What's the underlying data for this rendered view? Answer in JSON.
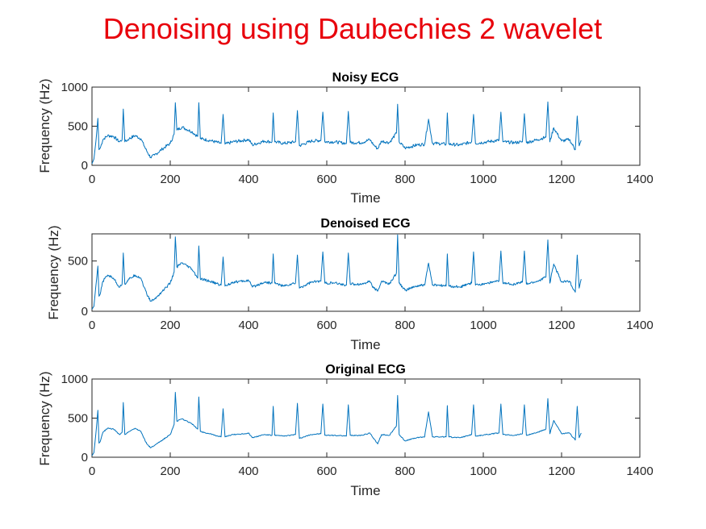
{
  "figure": {
    "title": "Denoising using Daubechies 2 wavelet",
    "title_color": "#e8000b",
    "line_color": "#0072bd"
  },
  "chart_data": [
    {
      "type": "line",
      "title": "Noisy ECG",
      "xlabel": "Time",
      "ylabel": "Frequency (Hz)",
      "xlim": [
        0,
        1400
      ],
      "ylim": [
        0,
        1000
      ],
      "xticks": [
        0,
        200,
        400,
        600,
        800,
        1000,
        1200,
        1400
      ],
      "yticks": [
        0,
        500,
        1000
      ],
      "series": [
        {
          "x": [
            0,
            5,
            10,
            15,
            18,
            21,
            28,
            40,
            55,
            70,
            77,
            80,
            84,
            95,
            110,
            125,
            140,
            150,
            160,
            180,
            200,
            210,
            213,
            217,
            230,
            255,
            270,
            273,
            277,
            300,
            330,
            335,
            340,
            360,
            390,
            400,
            410,
            440,
            460,
            463,
            467,
            490,
            520,
            525,
            530,
            560,
            585,
            590,
            595,
            620,
            650,
            655,
            660,
            690,
            710,
            720,
            730,
            740,
            760,
            778,
            781,
            785,
            800,
            830,
            850,
            860,
            870,
            885,
            905,
            908,
            912,
            940,
            970,
            975,
            980,
            1010,
            1040,
            1045,
            1050,
            1080,
            1100,
            1105,
            1110,
            1140,
            1160,
            1165,
            1170,
            1180,
            1200,
            1220,
            1235,
            1240,
            1245,
            1250
          ],
          "values": [
            20,
            80,
            300,
            600,
            200,
            220,
            330,
            380,
            370,
            300,
            330,
            720,
            300,
            340,
            380,
            340,
            180,
            100,
            130,
            210,
            280,
            400,
            800,
            450,
            490,
            430,
            370,
            800,
            340,
            320,
            280,
            650,
            270,
            300,
            320,
            330,
            260,
            310,
            300,
            670,
            300,
            280,
            300,
            700,
            250,
            310,
            320,
            680,
            300,
            300,
            280,
            690,
            290,
            290,
            330,
            260,
            210,
            310,
            290,
            410,
            780,
            300,
            220,
            260,
            270,
            590,
            280,
            280,
            270,
            670,
            270,
            260,
            300,
            650,
            280,
            300,
            320,
            680,
            300,
            290,
            300,
            660,
            290,
            330,
            360,
            810,
            300,
            480,
            310,
            330,
            200,
            630,
            250,
            320
          ]
        }
      ]
    },
    {
      "type": "line",
      "title": "Denoised ECG",
      "xlabel": "Time",
      "ylabel": "Frequency (Hz)",
      "xlim": [
        0,
        1400
      ],
      "ylim": [
        0,
        770
      ],
      "xticks": [
        0,
        200,
        400,
        600,
        800,
        1000,
        1200,
        1400
      ],
      "yticks": [
        0,
        500
      ],
      "series": [
        {
          "x": [
            0,
            5,
            10,
            15,
            18,
            21,
            28,
            40,
            55,
            70,
            77,
            80,
            84,
            95,
            110,
            125,
            140,
            150,
            160,
            180,
            200,
            210,
            213,
            217,
            230,
            255,
            270,
            273,
            277,
            300,
            330,
            335,
            340,
            360,
            390,
            400,
            410,
            440,
            460,
            463,
            467,
            490,
            520,
            525,
            530,
            560,
            585,
            590,
            595,
            620,
            650,
            655,
            660,
            690,
            710,
            720,
            730,
            740,
            760,
            778,
            781,
            785,
            800,
            830,
            850,
            860,
            870,
            885,
            905,
            908,
            912,
            940,
            970,
            975,
            980,
            1010,
            1040,
            1045,
            1050,
            1080,
            1100,
            1105,
            1110,
            1140,
            1160,
            1165,
            1170,
            1180,
            1200,
            1220,
            1235,
            1240,
            1245,
            1250
          ],
          "values": [
            20,
            50,
            250,
            450,
            150,
            170,
            300,
            360,
            330,
            240,
            270,
            580,
            270,
            320,
            360,
            330,
            170,
            100,
            120,
            200,
            280,
            390,
            740,
            440,
            480,
            420,
            330,
            650,
            320,
            300,
            260,
            540,
            250,
            290,
            300,
            310,
            240,
            290,
            280,
            570,
            280,
            250,
            280,
            560,
            230,
            290,
            300,
            590,
            280,
            280,
            260,
            580,
            270,
            270,
            300,
            230,
            200,
            300,
            270,
            380,
            760,
            280,
            210,
            250,
            260,
            480,
            260,
            260,
            250,
            570,
            250,
            240,
            280,
            590,
            260,
            280,
            300,
            600,
            280,
            270,
            290,
            600,
            270,
            300,
            340,
            710,
            280,
            470,
            290,
            300,
            190,
            560,
            230,
            320
          ]
        }
      ]
    },
    {
      "type": "line",
      "title": "Original ECG",
      "xlabel": "Time",
      "ylabel": "Frequency (Hz)",
      "xlim": [
        0,
        1400
      ],
      "ylim": [
        0,
        1000
      ],
      "xticks": [
        0,
        200,
        400,
        600,
        800,
        1000,
        1200,
        1400
      ],
      "yticks": [
        0,
        500,
        1000
      ],
      "series": [
        {
          "x": [
            0,
            5,
            10,
            15,
            18,
            21,
            28,
            40,
            55,
            70,
            77,
            80,
            84,
            95,
            110,
            125,
            140,
            150,
            160,
            180,
            200,
            210,
            213,
            217,
            230,
            255,
            270,
            273,
            277,
            300,
            330,
            335,
            340,
            360,
            390,
            400,
            410,
            440,
            460,
            463,
            467,
            490,
            520,
            525,
            530,
            560,
            585,
            590,
            595,
            620,
            650,
            655,
            660,
            690,
            710,
            720,
            730,
            740,
            760,
            778,
            781,
            785,
            800,
            830,
            850,
            860,
            870,
            885,
            905,
            908,
            912,
            940,
            970,
            975,
            980,
            1010,
            1040,
            1045,
            1050,
            1080,
            1100,
            1105,
            1110,
            1140,
            1160,
            1165,
            1170,
            1180,
            1200,
            1220,
            1235,
            1240,
            1245,
            1250
          ],
          "values": [
            20,
            60,
            300,
            600,
            180,
            200,
            320,
            370,
            360,
            290,
            320,
            700,
            290,
            330,
            370,
            330,
            170,
            120,
            150,
            220,
            290,
            420,
            830,
            460,
            490,
            430,
            360,
            770,
            330,
            300,
            260,
            620,
            260,
            290,
            300,
            310,
            250,
            290,
            280,
            650,
            280,
            270,
            290,
            690,
            240,
            290,
            300,
            680,
            280,
            280,
            270,
            670,
            280,
            280,
            310,
            240,
            170,
            290,
            280,
            400,
            790,
            290,
            210,
            250,
            260,
            580,
            260,
            260,
            260,
            660,
            260,
            250,
            290,
            670,
            270,
            290,
            310,
            680,
            290,
            280,
            300,
            670,
            280,
            320,
            360,
            750,
            300,
            470,
            300,
            310,
            220,
            650,
            250,
            310
          ]
        }
      ]
    }
  ]
}
